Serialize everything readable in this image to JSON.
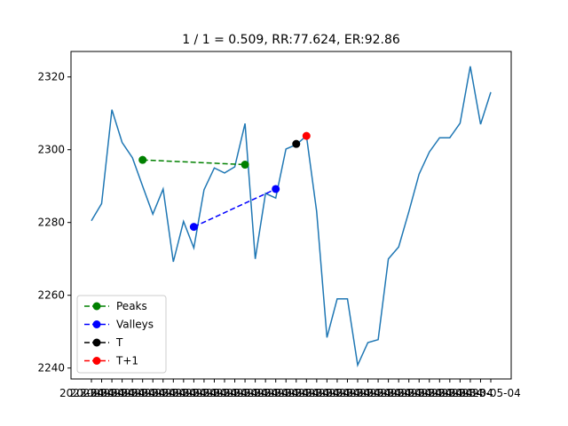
{
  "chart_data": {
    "type": "line",
    "title": "1 / 1 = 0.509, RR:77.624, ER:92.86",
    "xlabel": "",
    "ylabel": "",
    "ylim": [
      2237,
      2327
    ],
    "yticks": [
      2240,
      2260,
      2280,
      2300,
      2320
    ],
    "x_tick_labels_text": "20​2​3​-​0​4 overlapping date tick labels (illegible)",
    "x_tick_last_label": "2023-05-04",
    "grid": false,
    "legend_position": "lower-left",
    "series": [
      {
        "name": "",
        "color": "#1f77b4",
        "style": "solid",
        "values": [
          2280.5,
          2285.2,
          2311.0,
          2302.0,
          2297.8,
          2290.0,
          2282.3,
          2289.2,
          2269.2,
          2280.3,
          2273.0,
          2289.0,
          2295.0,
          2293.6,
          2295.3,
          2307.2,
          2270.0,
          2288.0,
          2286.7,
          2300.2,
          2301.4,
          2303.8,
          2283.0,
          2248.4,
          2259.0,
          2259.0,
          2240.8,
          2247.0,
          2247.8,
          2270.0,
          2273.3,
          2283.0,
          2293.3,
          2299.4,
          2303.3,
          2303.3,
          2307.3,
          2322.9,
          2307.0,
          2315.8
        ]
      },
      {
        "name": "Peaks",
        "color": "#008000",
        "style": "dashed",
        "marker": "circle",
        "points": [
          [
            5,
            2297.2
          ],
          [
            15,
            2295.9
          ]
        ]
      },
      {
        "name": "Valleys",
        "color": "#0000ff",
        "style": "dashed",
        "marker": "circle",
        "points": [
          [
            10,
            2278.8
          ],
          [
            18,
            2289.2
          ]
        ]
      },
      {
        "name": "T",
        "color": "#000000",
        "style": "dashed",
        "marker": "circle",
        "points": [
          [
            20,
            2301.6
          ]
        ]
      },
      {
        "name": "T+1",
        "color": "#ff0000",
        "style": "dashed",
        "marker": "circle",
        "points": [
          [
            21,
            2303.8
          ]
        ]
      }
    ]
  }
}
